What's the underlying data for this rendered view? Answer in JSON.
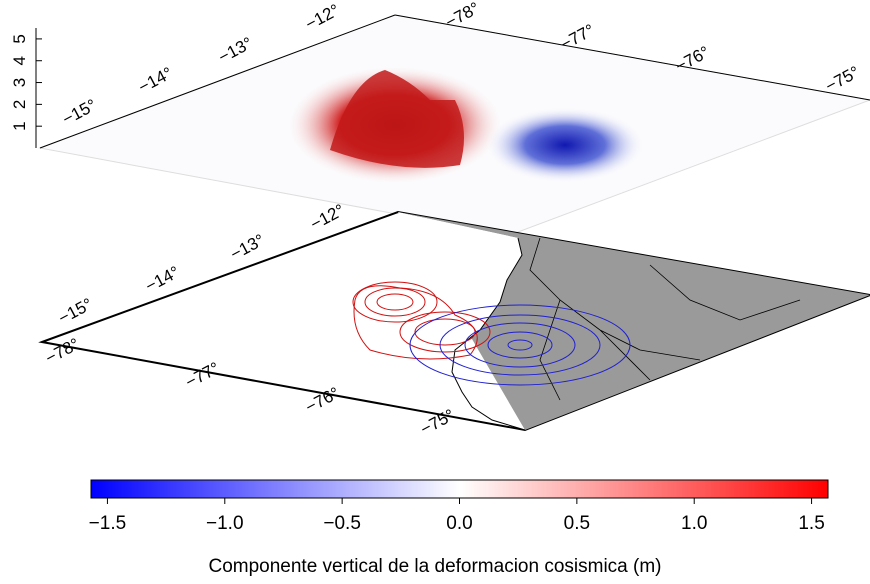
{
  "surface_panel": {
    "lat_labels": [
      "−12°",
      "−13°",
      "−14°",
      "−15°"
    ],
    "lon_labels": [
      "−78°",
      "−77°",
      "−76°",
      "−75°"
    ],
    "z_ticks": [
      1,
      2,
      3,
      4,
      5
    ],
    "z_range": [
      0,
      5.5
    ]
  },
  "map_panel": {
    "lat_labels": [
      "−12°",
      "−13°",
      "−14°",
      "−15°"
    ],
    "lon_labels": [
      "−78°",
      "−77°",
      "−76°",
      "−75°"
    ]
  },
  "colorbar": {
    "range": [
      -1.57,
      1.57
    ],
    "ticks": [
      {
        "value": -1.5,
        "label": "−1.5"
      },
      {
        "value": -1.0,
        "label": "−1.0"
      },
      {
        "value": -0.5,
        "label": "−0.5"
      },
      {
        "value": 0,
        "label": "0.0"
      },
      0.5,
      {
        "value": 1.0,
        "label": "1.0"
      },
      1.5
    ],
    "label": "Componente vertical de la deformacion cosismica (m)"
  }
}
